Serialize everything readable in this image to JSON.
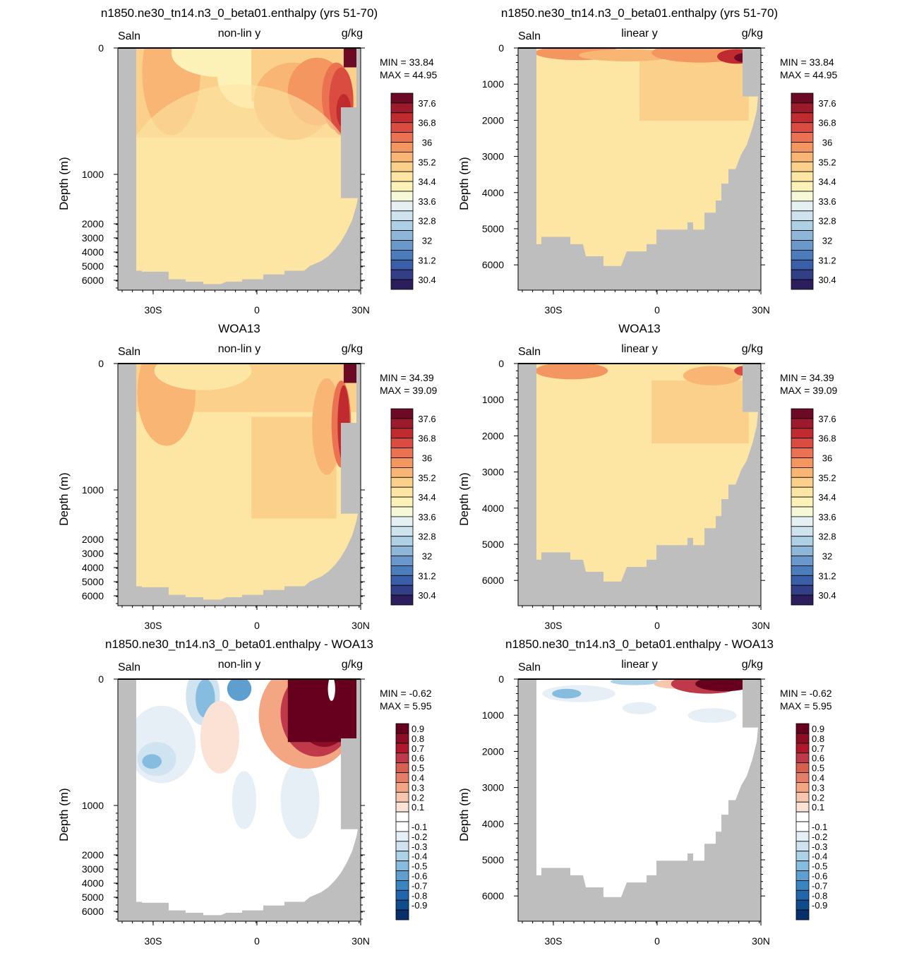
{
  "figure": {
    "background": "#ffffff"
  },
  "palettes": {
    "full": [
      "#2c1e5c",
      "#323e86",
      "#3a5ea8",
      "#4d7cbb",
      "#6a98ca",
      "#8db6d8",
      "#aed0e4",
      "#cfe3ef",
      "#e5f0f2",
      "#f6f9d8",
      "#fcf2b8",
      "#fde5a3",
      "#fbd08a",
      "#f8b574",
      "#f39660",
      "#ea7251",
      "#d94c3f",
      "#c02b30",
      "#9b1a2c",
      "#6c0a26"
    ],
    "diff": [
      "#08306b",
      "#0f4c8c",
      "#2166ac",
      "#3a84bf",
      "#5e9fd0",
      "#86bcdf",
      "#abd2e7",
      "#cfe3f0",
      "#e6eff6",
      "#ffffff",
      "#ffffff",
      "#fbe2d4",
      "#f7c6ae",
      "#f4a582",
      "#e57e67",
      "#d6604d",
      "#c0394a",
      "#b2182b",
      "#8c0d25",
      "#67001f"
    ],
    "land": "#bebebe"
  },
  "panels": [
    {
      "id": "model_nonlin",
      "title": "n1850.ne30_tn14.n3_0_beta01.enthalpy (yrs 51-70)",
      "left_label": "Saln",
      "center_label": "non-lin y",
      "right_label": "g/kg",
      "ylabel": "Depth (m)",
      "min_text": "MIN =  33.84",
      "max_text": "MAX =  44.95",
      "palette": "full",
      "chart_data": {
        "type": "heatmap",
        "field": "salinity",
        "units": "g/kg",
        "yscale": "nonlinear",
        "x_ticks": [
          "30S",
          "0",
          "30N"
        ],
        "y_ticks": [
          "0",
          "1000",
          "2000",
          "3000",
          "4000",
          "5000",
          "6000"
        ],
        "colorbar_labels": [
          "37.6",
          "36.8",
          "36",
          "35.2",
          "34.4",
          "33.6",
          "32.8",
          "32",
          "31.2",
          "30.4"
        ],
        "min": 33.84,
        "max": 44.95
      }
    },
    {
      "id": "model_linear",
      "title": "n1850.ne30_tn14.n3_0_beta01.enthalpy (yrs 51-70)",
      "left_label": "Saln",
      "center_label": "linear y",
      "right_label": "g/kg",
      "ylabel": "Depth (m)",
      "min_text": "MIN =  33.84",
      "max_text": "MAX =  44.95",
      "palette": "full",
      "chart_data": {
        "type": "heatmap",
        "field": "salinity",
        "units": "g/kg",
        "yscale": "linear",
        "x_ticks": [
          "30S",
          "0",
          "30N"
        ],
        "y_ticks": [
          "0",
          "1000",
          "2000",
          "3000",
          "4000",
          "5000",
          "6000"
        ],
        "colorbar_labels": [
          "37.6",
          "36.8",
          "36",
          "35.2",
          "34.4",
          "33.6",
          "32.8",
          "32",
          "31.2",
          "30.4"
        ],
        "min": 33.84,
        "max": 44.95
      }
    },
    {
      "id": "obs_nonlin",
      "title": "WOA13",
      "left_label": "Saln",
      "center_label": "non-lin y",
      "right_label": "g/kg",
      "ylabel": "Depth (m)",
      "min_text": "MIN =  34.39",
      "max_text": "MAX =  39.09",
      "palette": "full",
      "chart_data": {
        "type": "heatmap",
        "field": "salinity",
        "units": "g/kg",
        "yscale": "nonlinear",
        "x_ticks": [
          "30S",
          "0",
          "30N"
        ],
        "y_ticks": [
          "0",
          "1000",
          "2000",
          "3000",
          "4000",
          "5000",
          "6000"
        ],
        "colorbar_labels": [
          "37.6",
          "36.8",
          "36",
          "35.2",
          "34.4",
          "33.6",
          "32.8",
          "32",
          "31.2",
          "30.4"
        ],
        "min": 34.39,
        "max": 39.09
      }
    },
    {
      "id": "obs_linear",
      "title": "WOA13",
      "left_label": "Saln",
      "center_label": "linear y",
      "right_label": "g/kg",
      "ylabel": "Depth (m)",
      "min_text": "MIN =  34.39",
      "max_text": "MAX =  39.09",
      "palette": "full",
      "chart_data": {
        "type": "heatmap",
        "field": "salinity",
        "units": "g/kg",
        "yscale": "linear",
        "x_ticks": [
          "30S",
          "0",
          "30N"
        ],
        "y_ticks": [
          "0",
          "1000",
          "2000",
          "3000",
          "4000",
          "5000",
          "6000"
        ],
        "colorbar_labels": [
          "37.6",
          "36.8",
          "36",
          "35.2",
          "34.4",
          "33.6",
          "32.8",
          "32",
          "31.2",
          "30.4"
        ],
        "min": 34.39,
        "max": 39.09
      }
    },
    {
      "id": "diff_nonlin",
      "title": "n1850.ne30_tn14.n3_0_beta01.enthalpy - WOA13",
      "left_label": "Saln",
      "center_label": "non-lin y",
      "right_label": "g/kg",
      "ylabel": "Depth (m)",
      "min_text": "MIN =  -0.62",
      "max_text": "MAX =   5.95",
      "palette": "diff",
      "chart_data": {
        "type": "heatmap",
        "field": "salinity difference",
        "units": "g/kg",
        "yscale": "nonlinear",
        "x_ticks": [
          "30S",
          "0",
          "30N"
        ],
        "y_ticks": [
          "0",
          "1000",
          "2000",
          "3000",
          "4000",
          "5000",
          "6000"
        ],
        "colorbar_labels": [
          "0.9",
          "0.8",
          "0.7",
          "0.6",
          "0.5",
          "0.4",
          "0.3",
          "0.2",
          "0.1",
          "-0.1",
          "-0.2",
          "-0.3",
          "-0.4",
          "-0.5",
          "-0.6",
          "-0.7",
          "-0.8",
          "-0.9"
        ],
        "min": -0.62,
        "max": 5.95
      }
    },
    {
      "id": "diff_linear",
      "title": "n1850.ne30_tn14.n3_0_beta01.enthalpy - WOA13",
      "left_label": "Saln",
      "center_label": "linear y",
      "right_label": "g/kg",
      "ylabel": "Depth (m)",
      "min_text": "MIN =  -0.62",
      "max_text": "MAX =   5.95",
      "palette": "diff",
      "chart_data": {
        "type": "heatmap",
        "field": "salinity difference",
        "units": "g/kg",
        "yscale": "linear",
        "x_ticks": [
          "30S",
          "0",
          "30N"
        ],
        "y_ticks": [
          "0",
          "1000",
          "2000",
          "3000",
          "4000",
          "5000",
          "6000"
        ],
        "colorbar_labels": [
          "0.9",
          "0.8",
          "0.7",
          "0.6",
          "0.5",
          "0.4",
          "0.3",
          "0.2",
          "0.1",
          "-0.1",
          "-0.2",
          "-0.3",
          "-0.4",
          "-0.5",
          "-0.6",
          "-0.7",
          "-0.8",
          "-0.9"
        ],
        "min": -0.62,
        "max": 5.95
      }
    }
  ]
}
